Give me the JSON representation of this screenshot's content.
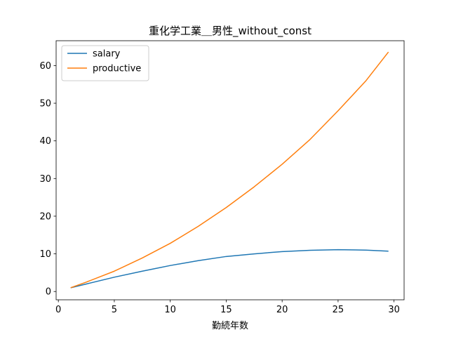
{
  "chart_data": {
    "type": "line",
    "title": "重化学工業＿男性_without_const",
    "xlabel": "勤続年数",
    "ylabel": "",
    "xlim": [
      -0.2,
      30.9
    ],
    "ylim": [
      -2.2,
      66.6
    ],
    "xticks": [
      0,
      5,
      10,
      15,
      20,
      25,
      30
    ],
    "yticks": [
      0,
      10,
      20,
      30,
      40,
      50,
      60
    ],
    "grid": false,
    "legend_position": "top-left",
    "series": [
      {
        "name": "salary",
        "color": "#1f77b4",
        "x": [
          1.1,
          2.5,
          5,
          7.5,
          10,
          12.5,
          15,
          17.5,
          20,
          22.5,
          25,
          27.5,
          29.5
        ],
        "y": [
          1.0,
          2.0,
          3.8,
          5.4,
          6.9,
          8.2,
          9.3,
          10.0,
          10.6,
          10.95,
          11.1,
          11.0,
          10.7
        ]
      },
      {
        "name": "productive",
        "color": "#ff7f0e",
        "x": [
          1.1,
          2.5,
          5,
          7.5,
          10,
          12.5,
          15,
          17.5,
          20,
          22.5,
          25,
          27.5,
          29.5
        ],
        "y": [
          1.0,
          2.5,
          5.4,
          8.9,
          12.8,
          17.3,
          22.3,
          27.8,
          33.8,
          40.4,
          48.0,
          56.0,
          63.6
        ]
      }
    ]
  }
}
